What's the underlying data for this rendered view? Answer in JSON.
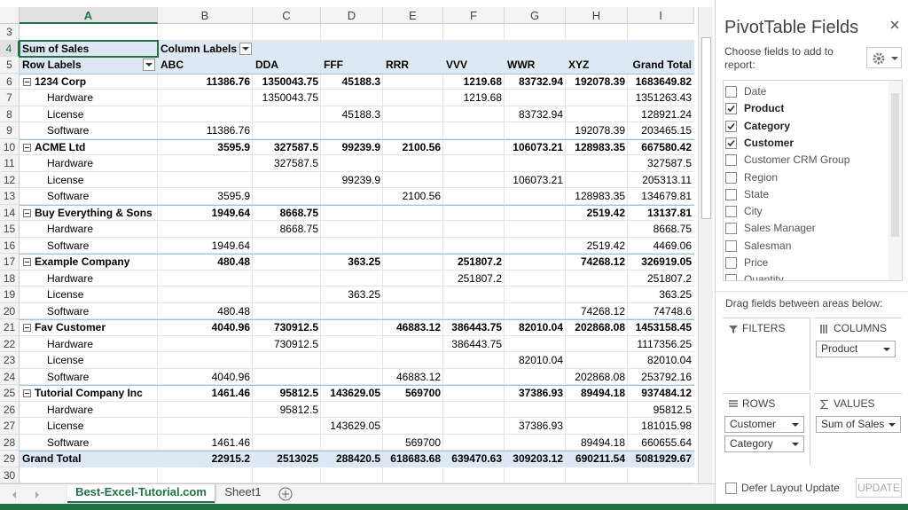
{
  "sheet": {
    "column_letters": [
      "A",
      "B",
      "C",
      "D",
      "E",
      "F",
      "G",
      "H",
      "I"
    ],
    "row_numbers": [
      3,
      4,
      5,
      6,
      7,
      8,
      9,
      10,
      11,
      12,
      13,
      14,
      15,
      16,
      17,
      18,
      19,
      20,
      21,
      22,
      23,
      24,
      25,
      26,
      27,
      28,
      29,
      30
    ],
    "pivot": {
      "corner": "Sum of Sales",
      "column_labels": "Column Labels",
      "row_labels": "Row Labels",
      "columns": [
        "ABC",
        "DDA",
        "FFF",
        "RRR",
        "VVV",
        "WWR",
        "XYZ",
        "Grand Total"
      ],
      "groups": [
        {
          "name": "1234 Corp",
          "values": [
            11386.76,
            1350043.75,
            45188.3,
            null,
            1219.68,
            83732.94,
            192078.39,
            1683649.82
          ],
          "children": [
            {
              "name": "Hardware",
              "values": [
                null,
                1350043.75,
                null,
                null,
                1219.68,
                null,
                null,
                1351263.43
              ]
            },
            {
              "name": "License",
              "values": [
                null,
                null,
                45188.3,
                null,
                null,
                83732.94,
                null,
                128921.24
              ]
            },
            {
              "name": "Software",
              "values": [
                11386.76,
                null,
                null,
                null,
                null,
                null,
                192078.39,
                203465.15
              ]
            }
          ]
        },
        {
          "name": "ACME Ltd",
          "values": [
            3595.9,
            327587.5,
            99239.9,
            2100.56,
            null,
            106073.21,
            128983.35,
            667580.42
          ],
          "children": [
            {
              "name": "Hardware",
              "values": [
                null,
                327587.5,
                null,
                null,
                null,
                null,
                null,
                327587.5
              ]
            },
            {
              "name": "License",
              "values": [
                null,
                null,
                99239.9,
                null,
                null,
                106073.21,
                null,
                205313.11
              ]
            },
            {
              "name": "Software",
              "values": [
                3595.9,
                null,
                null,
                2100.56,
                null,
                null,
                128983.35,
                134679.81
              ]
            }
          ]
        },
        {
          "name": "Buy Everything & Sons",
          "values": [
            1949.64,
            8668.75,
            null,
            null,
            null,
            null,
            2519.42,
            13137.81
          ],
          "children": [
            {
              "name": "Hardware",
              "values": [
                null,
                8668.75,
                null,
                null,
                null,
                null,
                null,
                8668.75
              ]
            },
            {
              "name": "Software",
              "values": [
                1949.64,
                null,
                null,
                null,
                null,
                null,
                2519.42,
                4469.06
              ]
            }
          ]
        },
        {
          "name": "Example Company",
          "values": [
            480.48,
            null,
            363.25,
            null,
            251807.2,
            null,
            74268.12,
            326919.05
          ],
          "children": [
            {
              "name": "Hardware",
              "values": [
                null,
                null,
                null,
                null,
                251807.2,
                null,
                null,
                251807.2
              ]
            },
            {
              "name": "License",
              "values": [
                null,
                null,
                363.25,
                null,
                null,
                null,
                null,
                363.25
              ]
            },
            {
              "name": "Software",
              "values": [
                480.48,
                null,
                null,
                null,
                null,
                null,
                74268.12,
                74748.6
              ]
            }
          ]
        },
        {
          "name": "Fav Customer",
          "values": [
            4040.96,
            730912.5,
            null,
            46883.12,
            386443.75,
            82010.04,
            202868.08,
            1453158.45
          ],
          "children": [
            {
              "name": "Hardware",
              "values": [
                null,
                730912.5,
                null,
                null,
                386443.75,
                null,
                null,
                1117356.25
              ]
            },
            {
              "name": "License",
              "values": [
                null,
                null,
                null,
                null,
                null,
                82010.04,
                null,
                82010.04
              ]
            },
            {
              "name": "Software",
              "values": [
                4040.96,
                null,
                null,
                46883.12,
                null,
                null,
                202868.08,
                253792.16
              ]
            }
          ]
        },
        {
          "name": "Tutorial Company Inc",
          "values": [
            1461.46,
            95812.5,
            143629.05,
            569700,
            null,
            37386.93,
            89494.18,
            937484.12
          ],
          "children": [
            {
              "name": "Hardware",
              "values": [
                null,
                95812.5,
                null,
                null,
                null,
                null,
                null,
                95812.5
              ]
            },
            {
              "name": "License",
              "values": [
                null,
                null,
                143629.05,
                null,
                null,
                37386.93,
                null,
                181015.98
              ]
            },
            {
              "name": "Software",
              "values": [
                1461.46,
                null,
                null,
                569700,
                null,
                null,
                89494.18,
                660655.64
              ]
            }
          ]
        }
      ],
      "grand_total": {
        "name": "Grand Total",
        "values": [
          22915.2,
          2513025,
          288420.5,
          618683.68,
          639470.63,
          309203.12,
          690211.54,
          5081929.67
        ]
      }
    },
    "tabs": [
      "Best-Excel-Tutorial.com",
      "Sheet1"
    ]
  },
  "pivot_panel": {
    "title": "PivotTable Fields",
    "subtitle": "Choose fields to add to report:",
    "fields": [
      {
        "name": "Date",
        "checked": false
      },
      {
        "name": "Product",
        "checked": true
      },
      {
        "name": "Category",
        "checked": true
      },
      {
        "name": "Customer",
        "checked": true
      },
      {
        "name": "Customer CRM Group",
        "checked": false
      },
      {
        "name": "Region",
        "checked": false
      },
      {
        "name": "State",
        "checked": false
      },
      {
        "name": "City",
        "checked": false
      },
      {
        "name": "Sales Manager",
        "checked": false
      },
      {
        "name": "Salesman",
        "checked": false
      },
      {
        "name": "Price",
        "checked": false
      },
      {
        "name": "Quantity",
        "checked": false
      }
    ],
    "drag_hint": "Drag fields between areas below:",
    "areas": [
      {
        "title": "FILTERS",
        "items": []
      },
      {
        "title": "COLUMNS",
        "items": [
          "Product"
        ]
      },
      {
        "title": "ROWS",
        "items": [
          "Customer",
          "Category"
        ]
      },
      {
        "title": "VALUES",
        "items": [
          "Sum of Sales"
        ]
      }
    ],
    "defer": "Defer Layout Update",
    "update": "UPDATE"
  }
}
